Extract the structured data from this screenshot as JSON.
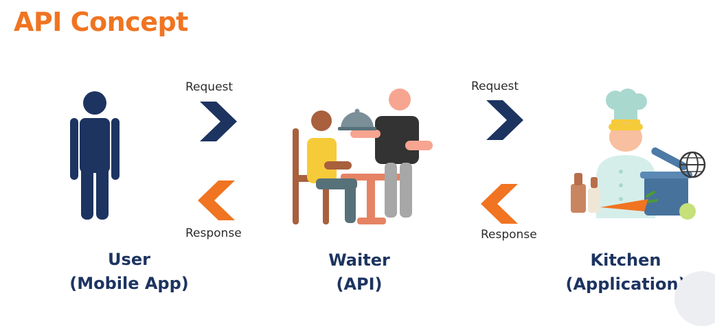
{
  "title": "API Concept",
  "colors": {
    "title_orange": "#F07421",
    "navy": "#1D3461",
    "arrow_orange": "#F07421"
  },
  "flow": [
    {
      "from": "user",
      "to": "waiter",
      "request_label": "Request",
      "response_label": "Response"
    },
    {
      "from": "waiter",
      "to": "kitchen",
      "request_label": "Request",
      "response_label": "Response"
    }
  ],
  "entities": {
    "user": {
      "line1": "User",
      "line2": "(Mobile App)",
      "icon": "person-icon"
    },
    "waiter": {
      "line1": "Waiter",
      "line2": "(API)",
      "icon": "waiter-serving-customer-icon"
    },
    "kitchen": {
      "line1": "Kitchen",
      "line2": "(Application)",
      "icon": "chef-cooking-icon"
    }
  }
}
